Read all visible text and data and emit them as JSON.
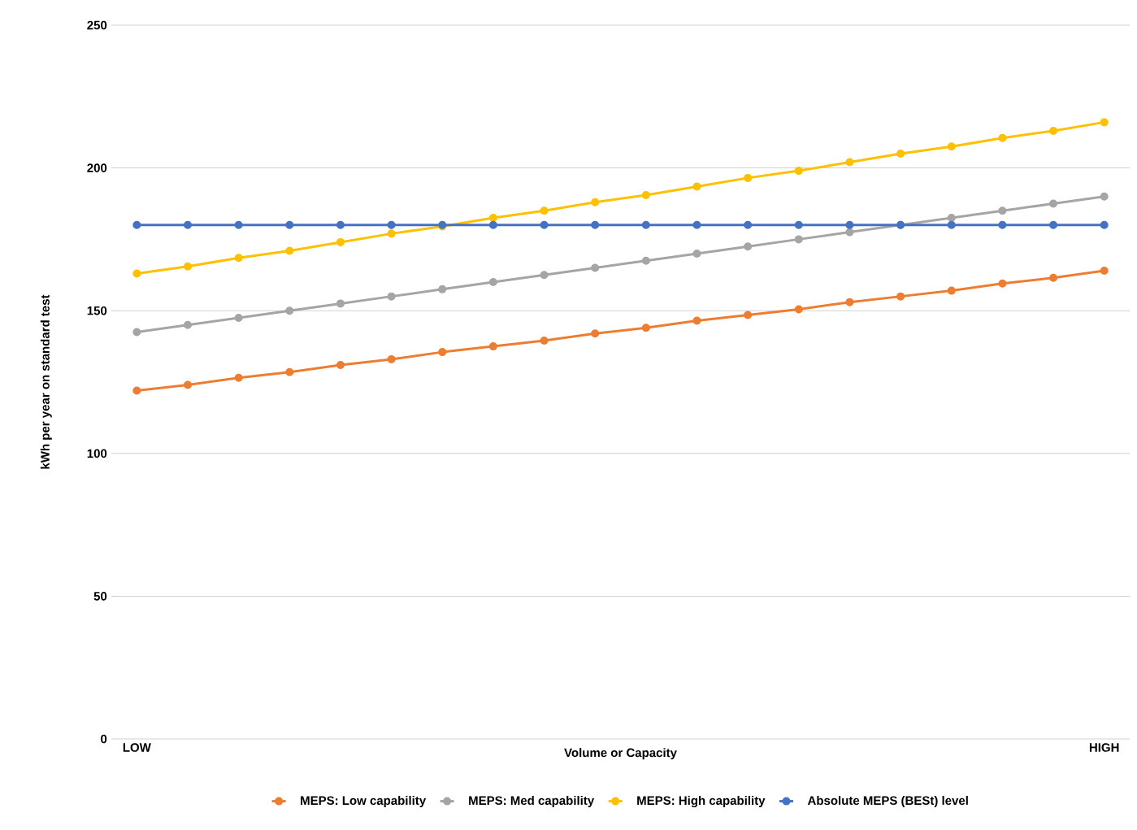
{
  "chart_data": {
    "type": "line",
    "xlabel": "Volume or Capacity",
    "ylabel": "kWh per year on standard test",
    "categories": [
      "LOW",
      null,
      null,
      null,
      null,
      null,
      null,
      null,
      null,
      null,
      null,
      null,
      null,
      null,
      null,
      null,
      null,
      null,
      null,
      "HIGH"
    ],
    "series": [
      {
        "name": "MEPS: Low capability",
        "color": "#ed7d31",
        "values": [
          122,
          124,
          126.5,
          128.5,
          131,
          133,
          135.5,
          137.5,
          139.5,
          142,
          144,
          146.5,
          148.5,
          150.5,
          153,
          155,
          157,
          159.5,
          161.5,
          164
        ]
      },
      {
        "name": "MEPS: Med capability",
        "color": "#a5a5a5",
        "values": [
          142.5,
          145,
          147.5,
          150,
          152.5,
          155,
          157.5,
          160,
          162.5,
          165,
          167.5,
          170,
          172.5,
          175,
          177.5,
          180,
          182.5,
          185,
          187.5,
          190
        ]
      },
      {
        "name": "MEPS: High capability",
        "color": "#ffc000",
        "values": [
          163,
          165.5,
          168.5,
          171,
          174,
          177,
          179.5,
          182.5,
          185,
          188,
          190.5,
          193.5,
          196.5,
          199,
          202,
          205,
          207.5,
          210.5,
          213,
          216
        ]
      },
      {
        "name": "Absolute MEPS (BESt) level",
        "color": "#4472c4",
        "values": [
          180,
          180,
          180,
          180,
          180,
          180,
          180,
          180,
          180,
          180,
          180,
          180,
          180,
          180,
          180,
          180,
          180,
          180,
          180,
          180
        ]
      }
    ],
    "ylim": [
      0,
      250
    ],
    "yticks": [
      0,
      50,
      100,
      150,
      200,
      250
    ],
    "grid": "y",
    "legend": "bottom",
    "marker": "circle",
    "line_style": "solid"
  }
}
